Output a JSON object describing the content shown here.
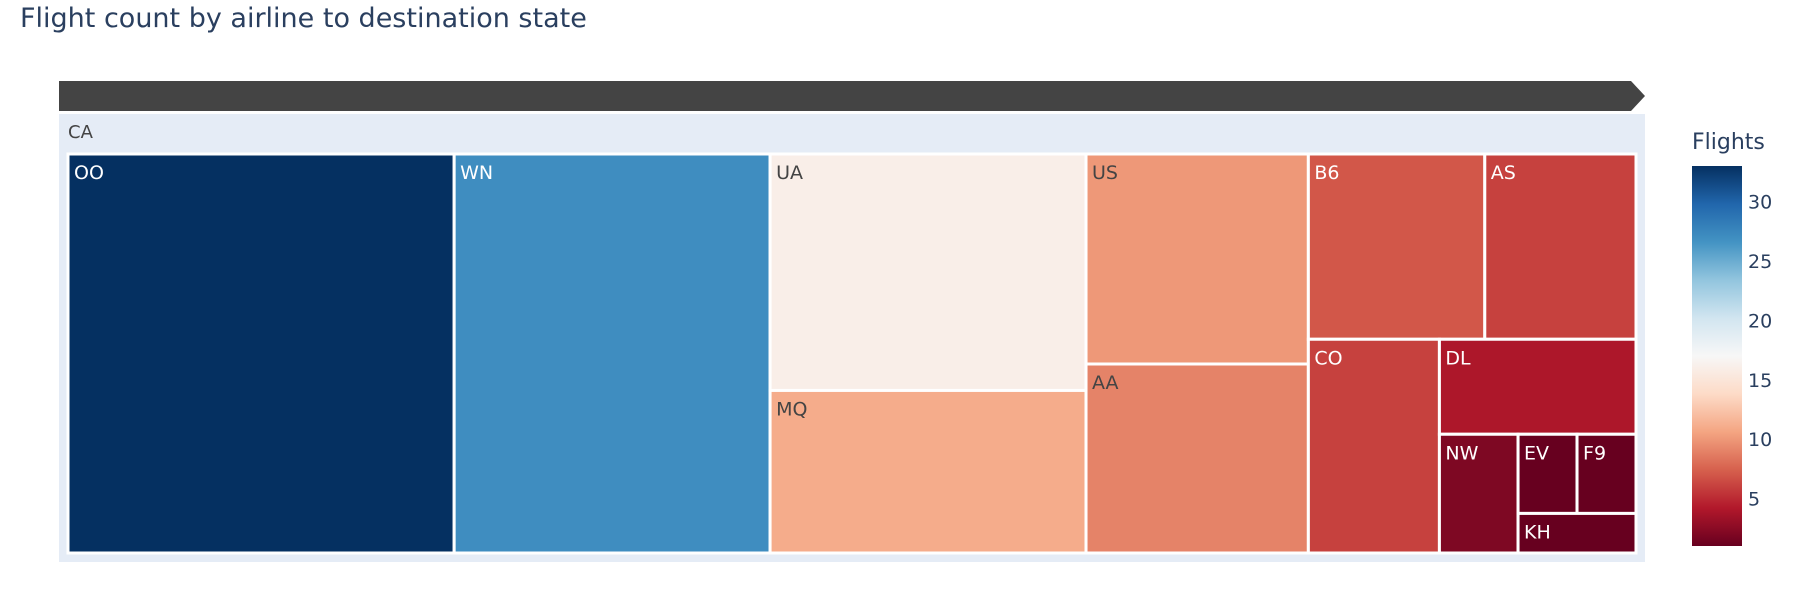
{
  "chart_data": {
    "type": "treemap",
    "title": "Flight count by airline to destination state",
    "root": {
      "label": "CA"
    },
    "leaves": [
      {
        "label": "OO",
        "value": 33
      },
      {
        "label": "WN",
        "value": 27
      },
      {
        "label": "UA",
        "value": 16
      },
      {
        "label": "MQ",
        "value": 11
      },
      {
        "label": "US",
        "value": 10
      },
      {
        "label": "AA",
        "value": 9
      },
      {
        "label": "B6",
        "value": 7
      },
      {
        "label": "AS",
        "value": 6
      },
      {
        "label": "CO",
        "value": 6
      },
      {
        "label": "DL",
        "value": 4
      },
      {
        "label": "NW",
        "value": 2
      },
      {
        "label": "EV",
        "value": 1
      },
      {
        "label": "F9",
        "value": 1
      },
      {
        "label": "KH",
        "value": 1
      }
    ],
    "colorbar": {
      "title": "Flights",
      "ticks": [
        30,
        25,
        20,
        15,
        10,
        5
      ],
      "range": [
        1,
        33
      ],
      "colorscale": [
        "#67001f",
        "#b2182b",
        "#d6604d",
        "#f4a582",
        "#fddbc7",
        "#f7f7f7",
        "#d1e5f0",
        "#92c5de",
        "#4393c3",
        "#2166ac",
        "#053061"
      ]
    },
    "colors": {
      "root_fill": "#e5ecf6",
      "pathbar": "#444444",
      "title_text": "#2a3f5f"
    }
  }
}
